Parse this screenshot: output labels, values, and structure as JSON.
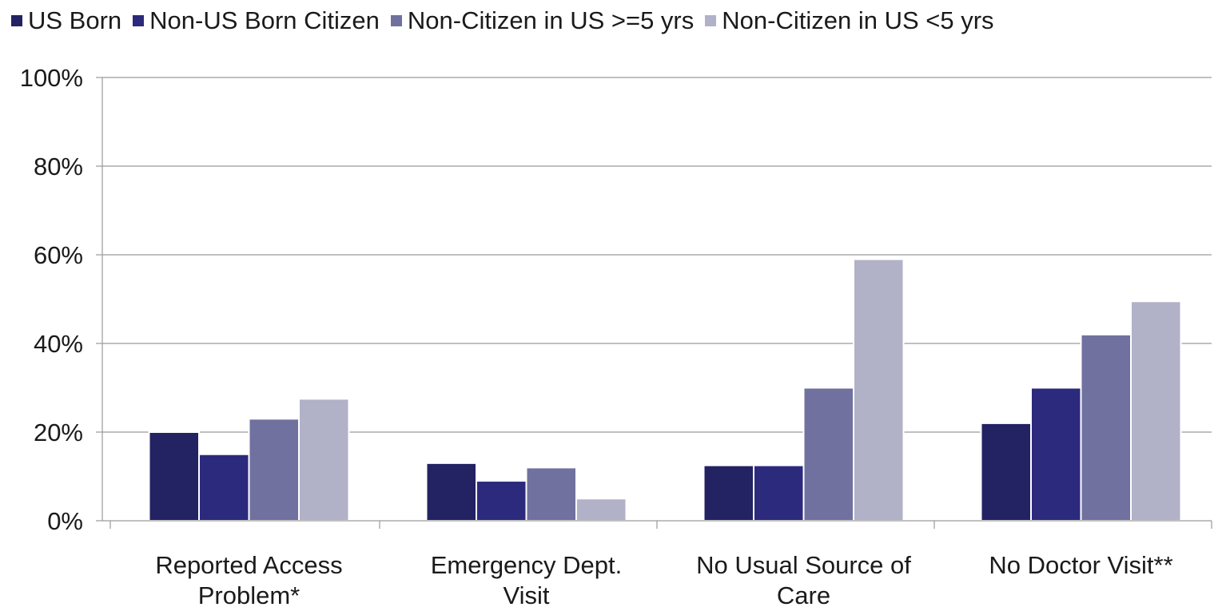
{
  "chart_data": {
    "type": "bar",
    "categories": [
      [
        "Reported Access",
        "Problem*"
      ],
      [
        "Emergency Dept.",
        "Visit"
      ],
      [
        "No Usual Source of",
        "Care"
      ],
      [
        "No Doctor Visit**"
      ]
    ],
    "series": [
      {
        "name": "US Born",
        "color": "#232262",
        "values": [
          20,
          13,
          12.5,
          22
        ]
      },
      {
        "name": "Non-US Born Citizen",
        "color": "#2c2a7d",
        "values": [
          15,
          9,
          12.5,
          30
        ]
      },
      {
        "name": "Non-Citizen in US >=5 yrs",
        "color": "#70719f",
        "values": [
          23,
          12,
          30,
          42
        ]
      },
      {
        "name": "Non-Citizen in US <5 yrs",
        "color": "#b1b2c8",
        "values": [
          27.5,
          5,
          59,
          49.5
        ]
      }
    ],
    "ylim": [
      0,
      100
    ],
    "yticks": [
      "0%",
      "20%",
      "40%",
      "60%",
      "80%",
      "100%"
    ],
    "ytick_values": [
      0,
      20,
      40,
      60,
      80,
      100
    ],
    "grid": true,
    "legend_position": "top"
  }
}
